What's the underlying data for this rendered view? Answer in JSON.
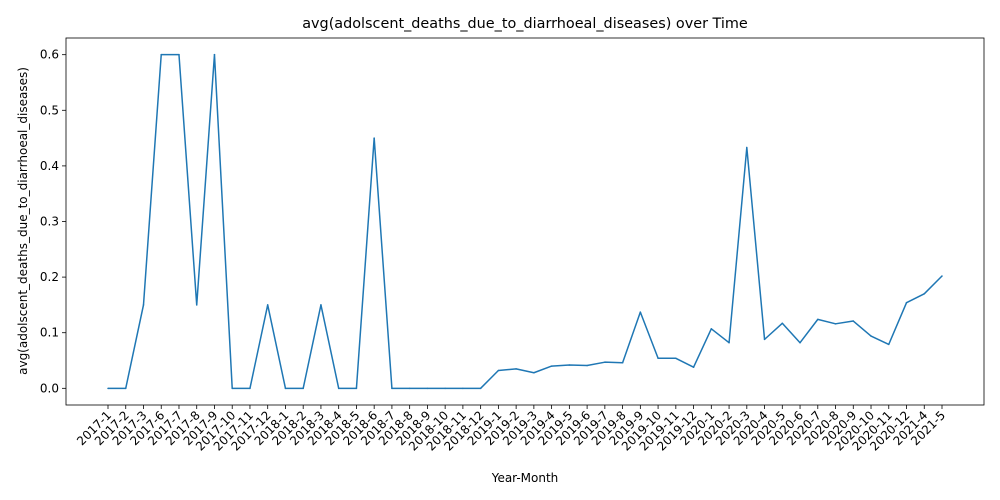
{
  "chart_data": {
    "type": "line",
    "title": "avg(adolscent_deaths_due_to_diarrhoeal_diseases) over Time",
    "xlabel": "Year-Month",
    "ylabel": "avg(adolscent_deaths_due_to_diarrhoeal_diseases)",
    "ylim": [
      -0.03,
      0.63
    ],
    "yticks": [
      0.0,
      0.1,
      0.2,
      0.3,
      0.4,
      0.5,
      0.6
    ],
    "ytick_labels": [
      "0.0",
      "0.1",
      "0.2",
      "0.3",
      "0.4",
      "0.5",
      "0.6"
    ],
    "grid": false,
    "line_color": "#1f77b4",
    "categories": [
      "2017-1",
      "2017-2",
      "2017-3",
      "2017-6",
      "2017-7",
      "2017-8",
      "2017-9",
      "2017-10",
      "2017-11",
      "2017-12",
      "2018-1",
      "2018-2",
      "2018-3",
      "2018-4",
      "2018-5",
      "2018-6",
      "2018-7",
      "2018-8",
      "2018-9",
      "2018-10",
      "2018-11",
      "2018-12",
      "2019-1",
      "2019-2",
      "2019-3",
      "2019-4",
      "2019-5",
      "2019-6",
      "2019-7",
      "2019-8",
      "2019-9",
      "2019-10",
      "2019-11",
      "2019-12",
      "2020-1",
      "2020-2",
      "2020-3",
      "2020-4",
      "2020-5",
      "2020-6",
      "2020-7",
      "2020-8",
      "2020-9",
      "2020-10",
      "2020-11",
      "2020-12",
      "2021-4",
      "2021-5"
    ],
    "values": [
      0.0,
      0.0,
      0.15,
      0.6,
      0.6,
      0.15,
      0.6,
      0.0,
      0.0,
      0.15,
      0.0,
      0.0,
      0.15,
      0.0,
      0.0,
      0.45,
      0.0,
      0.0,
      0.0,
      0.0,
      0.0,
      0.0,
      0.032,
      0.035,
      0.028,
      0.04,
      0.042,
      0.041,
      0.047,
      0.046,
      0.137,
      0.054,
      0.054,
      0.038,
      0.107,
      0.082,
      0.433,
      0.088,
      0.117,
      0.082,
      0.124,
      0.116,
      0.121,
      0.094,
      0.079,
      0.154,
      0.17,
      0.202
    ]
  }
}
